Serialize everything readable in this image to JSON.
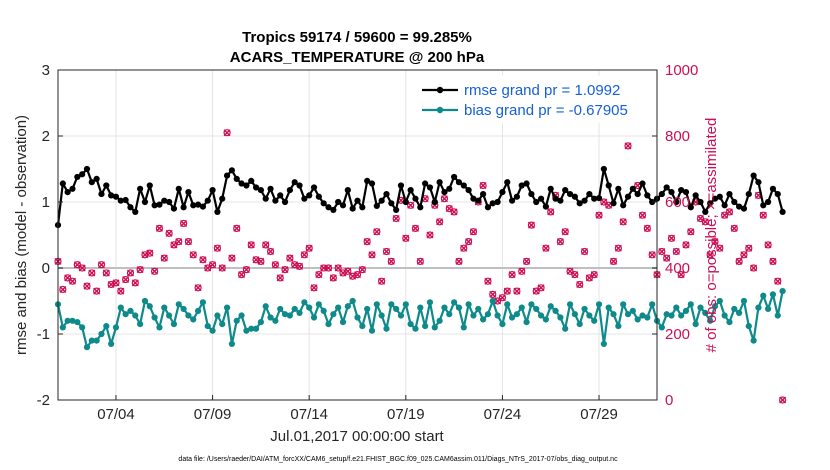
{
  "colors": {
    "rmse": "#000000",
    "bias": "#0e8a8a",
    "obs": "#cc0f55",
    "grid": "#e4e4e4",
    "zero": "#bfbfbf",
    "legend_text": "#1560d8"
  },
  "chart_data": {
    "type": "line",
    "title": "Tropics 59174 / 59600 = 99.285%",
    "subtitle": "ACARS_TEMPERATURE @ 200 hPa",
    "xlabel": "Jul.01,2017 00:00:00 start",
    "ylabel": "rmse and bias (model - observation)",
    "ylabel_right": "# of obs: o=possible; ×=assimilated",
    "xlim": [
      0,
      31
    ],
    "ylim": [
      -2,
      3
    ],
    "ylim_right": [
      0,
      1000
    ],
    "xticks": [
      {
        "x": 3,
        "label": "07/04"
      },
      {
        "x": 8,
        "label": "07/09"
      },
      {
        "x": 13,
        "label": "07/14"
      },
      {
        "x": 18,
        "label": "07/19"
      },
      {
        "x": 23,
        "label": "07/24"
      },
      {
        "x": 28,
        "label": "07/29"
      }
    ],
    "yticks": [
      {
        "y": -2,
        "label": "-2"
      },
      {
        "y": -1,
        "label": "-1"
      },
      {
        "y": 0,
        "label": "0"
      },
      {
        "y": 1,
        "label": "1"
      },
      {
        "y": 2,
        "label": "2"
      },
      {
        "y": 3,
        "label": "3"
      }
    ],
    "yticks_right": [
      {
        "y": 0,
        "label": "0"
      },
      {
        "y": 200,
        "label": "200"
      },
      {
        "y": 400,
        "label": "400"
      },
      {
        "y": 600,
        "label": "600"
      },
      {
        "y": 800,
        "label": "800"
      },
      {
        "y": 1000,
        "label": "1000"
      }
    ],
    "x_step": 0.25,
    "series": [
      {
        "name": "rmse grand pr = 1.0992",
        "values": [
          0.65,
          1.28,
          1.15,
          1.2,
          1.38,
          1.42,
          1.5,
          1.3,
          1.35,
          1.12,
          1.25,
          1.1,
          1.08,
          1.02,
          1.03,
          0.92,
          0.85,
          1.2,
          1.0,
          1.25,
          0.95,
          0.96,
          1.02,
          1.0,
          0.9,
          1.2,
          0.92,
          1.15,
          0.95,
          0.96,
          0.93,
          1.02,
          1.18,
          0.85,
          1.05,
          1.4,
          1.48,
          1.35,
          1.28,
          1.25,
          1.32,
          1.22,
          1.18,
          1.05,
          1.2,
          1.02,
          1.1,
          1.0,
          1.18,
          1.3,
          1.25,
          1.05,
          1.1,
          1.22,
          1.08,
          0.98,
          0.92,
          0.88,
          1.0,
          0.95,
          1.18,
          0.9,
          1.02,
          0.92,
          1.32,
          1.28,
          0.94,
          1.02,
          1.12,
          0.98,
          0.88,
          1.25,
          1.0,
          1.18,
          1.05,
          0.92,
          1.28,
          1.22,
          1.0,
          1.3,
          1.15,
          1.2,
          1.38,
          1.3,
          1.25,
          1.18,
          1.05,
          1.02,
          1.12,
          0.92,
          0.98,
          1.0,
          1.15,
          1.3,
          1.02,
          1.08,
          1.25,
          1.28,
          1.12,
          1.0,
          1.05,
          0.93,
          1.2,
          1.05,
          1.02,
          1.18,
          1.12,
          1.08,
          0.98,
          1.02,
          1.12,
          1.05,
          1.06,
          1.5,
          1.25,
          0.98,
          1.2,
          0.95,
          1.08,
          1.2,
          1.12,
          1.28,
          1.1,
          1.0,
          1.05,
          1.12,
          1.22,
          1.15,
          1.0,
          1.18,
          1.15,
          0.92,
          1.1,
          1.0,
          0.85,
          0.98,
          1.05,
          1.08,
          0.95,
          1.12,
          1.0,
          0.93,
          0.9,
          1.12,
          1.4,
          1.3,
          0.95,
          1.0,
          1.2,
          1.12,
          0.85
        ]
      },
      {
        "name": "bias grand pr = -0.67905",
        "values": [
          -0.55,
          -0.9,
          -0.8,
          -0.8,
          -0.82,
          -0.9,
          -1.2,
          -1.1,
          -1.1,
          -1.0,
          -0.88,
          -1.15,
          -0.9,
          -0.6,
          -0.7,
          -0.65,
          -0.72,
          -0.85,
          -0.5,
          -0.58,
          -0.75,
          -0.9,
          -0.6,
          -0.72,
          -0.85,
          -0.55,
          -0.62,
          -0.72,
          -0.78,
          -0.65,
          -0.52,
          -0.88,
          -0.95,
          -0.72,
          -0.85,
          -0.6,
          -1.15,
          -0.8,
          -0.72,
          -0.95,
          -0.92,
          -0.92,
          -0.82,
          -0.58,
          -0.75,
          -0.8,
          -0.62,
          -0.7,
          -0.72,
          -0.62,
          -0.68,
          -0.52,
          -0.6,
          -0.75,
          -0.55,
          -0.65,
          -0.85,
          -0.7,
          -0.6,
          -0.82,
          -0.58,
          -0.5,
          -0.75,
          -0.88,
          -0.62,
          -0.95,
          -0.55,
          -0.72,
          -0.92,
          -0.55,
          -0.62,
          -0.72,
          -0.55,
          -0.85,
          -0.92,
          -0.6,
          -0.88,
          -0.52,
          -0.9,
          -0.8,
          -0.6,
          -0.7,
          -0.52,
          -0.6,
          -0.9,
          -0.55,
          -0.72,
          -0.62,
          -0.78,
          -0.7,
          -0.5,
          -0.72,
          -0.85,
          -0.55,
          -0.75,
          -0.7,
          -0.6,
          -0.82,
          -0.55,
          -0.62,
          -0.72,
          -0.78,
          -0.58,
          -0.65,
          -0.75,
          -0.92,
          -0.55,
          -0.7,
          -0.85,
          -0.62,
          -0.72,
          -0.8,
          -0.55,
          -1.15,
          -0.6,
          -0.7,
          -0.88,
          -0.55,
          -0.7,
          -0.65,
          -0.78,
          -0.72,
          -0.75,
          -0.55,
          -0.8,
          -0.9,
          -0.7,
          -0.72,
          -0.6,
          -0.72,
          -0.65,
          -0.55,
          -0.85,
          -0.6,
          -0.68,
          -0.8,
          -0.58,
          -0.5,
          -0.72,
          -0.82,
          -0.62,
          -0.68,
          -0.5,
          -0.88,
          -1.1,
          -0.6,
          -0.42,
          -0.62,
          -0.4,
          -0.72,
          -0.35
        ]
      },
      {
        "name": "possible",
        "values": [
          420,
          335,
          370,
          360,
          410,
          400,
          345,
          385,
          330,
          410,
          385,
          350,
          355,
          330,
          365,
          385,
          355,
          395,
          440,
          445,
          390,
          520,
          430,
          505,
          470,
          480,
          535,
          480,
          440,
          340,
          425,
          400,
          410,
          460,
          400,
          810,
          430,
          520,
          380,
          395,
          470,
          425,
          420,
          470,
          450,
          410,
          370,
          395,
          430,
          410,
          405,
          440,
          460,
          340,
          380,
          400,
          400,
          370,
          400,
          385,
          390,
          375,
          380,
          395,
          480,
          440,
          510,
          360,
          450,
          420,
          550,
          605,
          490,
          590,
          520,
          420,
          610,
          500,
          590,
          540,
          610,
          580,
          570,
          420,
          460,
          480,
          510,
          600,
          650,
          360,
          320,
          300,
          310,
          330,
          380,
          330,
          390,
          420,
          530,
          330,
          340,
          460,
          570,
          620,
          480,
          510,
          390,
          380,
          350,
          450,
          370,
          380,
          560,
          600,
          590,
          420,
          460,
          540,
          770,
          860,
          650,
          560,
          520,
          440,
          380,
          450,
          430,
          490,
          450,
          380,
          470,
          510,
          600,
          550,
          540,
          440,
          480,
          460,
          560,
          570,
          520,
          420,
          440,
          460,
          400,
          620,
          560,
          470,
          420,
          360,
          0
        ]
      },
      {
        "name": "assimilated",
        "values": [
          420,
          335,
          370,
          360,
          410,
          400,
          345,
          385,
          330,
          410,
          385,
          350,
          355,
          330,
          365,
          385,
          355,
          395,
          440,
          445,
          390,
          520,
          430,
          505,
          470,
          480,
          535,
          480,
          440,
          340,
          425,
          400,
          410,
          460,
          400,
          810,
          430,
          520,
          380,
          395,
          470,
          425,
          420,
          470,
          450,
          410,
          370,
          395,
          430,
          410,
          405,
          440,
          460,
          340,
          380,
          400,
          400,
          370,
          400,
          385,
          390,
          375,
          380,
          395,
          480,
          440,
          510,
          360,
          450,
          420,
          550,
          605,
          490,
          590,
          520,
          420,
          610,
          500,
          590,
          540,
          610,
          580,
          570,
          420,
          460,
          480,
          510,
          600,
          650,
          360,
          320,
          300,
          310,
          330,
          380,
          330,
          390,
          420,
          530,
          330,
          340,
          460,
          570,
          620,
          480,
          510,
          390,
          380,
          350,
          450,
          370,
          380,
          560,
          600,
          590,
          420,
          460,
          540,
          770,
          860,
          650,
          560,
          520,
          440,
          380,
          450,
          430,
          490,
          450,
          380,
          470,
          510,
          600,
          550,
          540,
          440,
          480,
          460,
          560,
          570,
          520,
          420,
          440,
          460,
          400,
          620,
          560,
          470,
          420,
          360,
          0
        ]
      }
    ],
    "legend": {
      "placement": "top-right",
      "items": [
        {
          "label": "rmse grand pr = 1.0992",
          "series": "rmse"
        },
        {
          "label": "bias grand pr = -0.67905",
          "series": "bias"
        }
      ]
    },
    "footnote": "data file: /Users/raeder/DAI/ATM_forcXX/CAM6_setup/f.e21.FHIST_BGC.f09_025.CAM6assim.011/Diags_NTrS_2017-07/obs_diag_output.nc"
  }
}
